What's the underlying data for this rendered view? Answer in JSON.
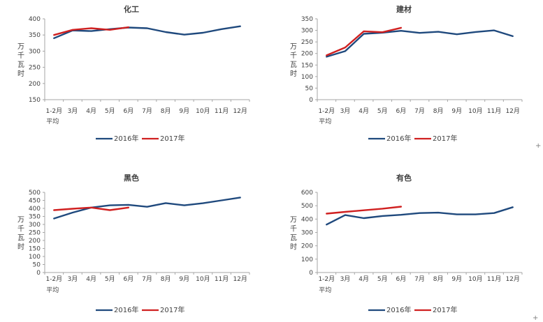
{
  "colors": {
    "series_2016": "#1F497D",
    "series_2017": "#D02020",
    "axis": "#A6A6A6",
    "text": "#404040"
  },
  "artifacts": {
    "plus": "+"
  },
  "chart_data": [
    {
      "type": "line",
      "title": "化工",
      "ylabel": "万千瓦时",
      "xlabel_second_line": "平均",
      "categories": [
        "1-2月",
        "3月",
        "4月",
        "5月",
        "6月",
        "7月",
        "8月",
        "9月",
        "10月",
        "11月",
        "12月"
      ],
      "ylim": [
        150,
        400
      ],
      "ytick_step": 50,
      "grid": false,
      "legend_position": "bottom",
      "series": [
        {
          "name": "2016年",
          "color_key": "series_2016",
          "values": [
            340,
            364,
            362,
            368,
            373,
            371,
            359,
            351,
            357,
            368,
            377
          ]
        },
        {
          "name": "2017年",
          "color_key": "series_2017",
          "values": [
            350,
            366,
            371,
            366,
            374
          ]
        }
      ]
    },
    {
      "type": "line",
      "title": "建材",
      "ylabel": "万千瓦时",
      "xlabel_second_line": "平均",
      "categories": [
        "1-2月",
        "3月",
        "4月",
        "5月",
        "6月",
        "7月",
        "8月",
        "9月",
        "10月",
        "11月",
        "12月"
      ],
      "ylim": [
        0,
        350
      ],
      "ytick_step": 50,
      "grid": false,
      "legend_position": "bottom",
      "series": [
        {
          "name": "2016年",
          "color_key": "series_2016",
          "values": [
            186,
            210,
            285,
            290,
            298,
            289,
            294,
            283,
            293,
            300,
            275
          ]
        },
        {
          "name": "2017年",
          "color_key": "series_2017",
          "values": [
            192,
            226,
            296,
            292,
            311
          ]
        }
      ]
    },
    {
      "type": "line",
      "title": "黑色",
      "ylabel": "万千瓦时",
      "xlabel_second_line": "平均",
      "categories": [
        "1-2月",
        "3月",
        "4月",
        "5月",
        "6月",
        "7月",
        "8月",
        "9月",
        "10月",
        "11月",
        "12月"
      ],
      "ylim": [
        0,
        500
      ],
      "ytick_step": 50,
      "grid": false,
      "legend_position": "bottom",
      "series": [
        {
          "name": "2016年",
          "color_key": "series_2016",
          "values": [
            337,
            374,
            405,
            419,
            422,
            410,
            433,
            419,
            432,
            450,
            468
          ]
        },
        {
          "name": "2017年",
          "color_key": "series_2017",
          "values": [
            389,
            398,
            405,
            389,
            405
          ]
        }
      ]
    },
    {
      "type": "line",
      "title": "有色",
      "ylabel": "万千瓦时",
      "xlabel_second_line": "平均",
      "categories": [
        "1-2月",
        "3月",
        "4月",
        "5月",
        "6月",
        "7月",
        "8月",
        "9月",
        "10月",
        "11月",
        "12月"
      ],
      "ylim": [
        0,
        600
      ],
      "ytick_step": 100,
      "grid": false,
      "legend_position": "bottom",
      "series": [
        {
          "name": "2016年",
          "color_key": "series_2016",
          "values": [
            359,
            430,
            407,
            423,
            432,
            445,
            448,
            435,
            435,
            445,
            489
          ]
        },
        {
          "name": "2017年",
          "color_key": "series_2017",
          "values": [
            441,
            454,
            466,
            478,
            493
          ]
        }
      ]
    }
  ]
}
